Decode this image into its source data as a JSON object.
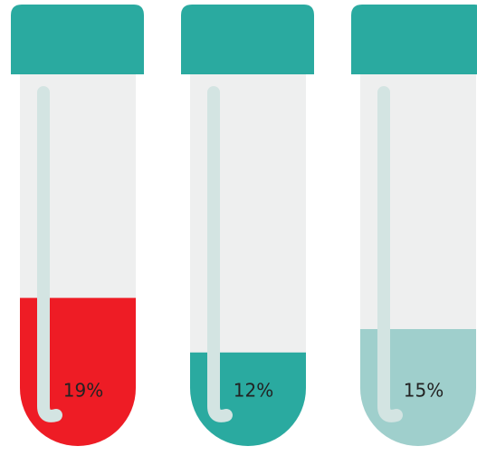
{
  "chart_data": {
    "type": "bar",
    "values": [
      19,
      12,
      15
    ],
    "value_labels": [
      "19%",
      "12%",
      "15%"
    ],
    "colors": [
      "#ee1c25",
      "#2aaaa0",
      "#9fcfcc"
    ],
    "cap_color": "#2aaaa0"
  }
}
